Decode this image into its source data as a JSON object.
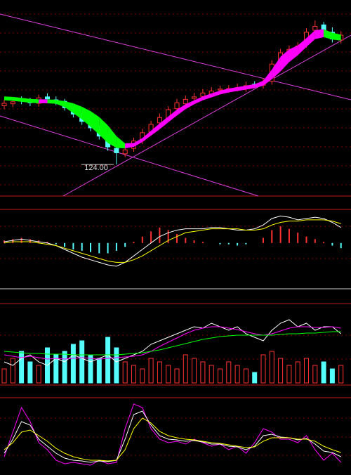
{
  "chart_data": [
    {
      "type": "candlestick",
      "ylim": [
        118,
        157
      ],
      "open": [
        136.0,
        136.4,
        137.2,
        136.9,
        136.5,
        137.8,
        137.2,
        136.9,
        135.4,
        134.0,
        132.6,
        131.2,
        129.5,
        127.3,
        126.2,
        127.3,
        128.9,
        130.6,
        132.5,
        133.4,
        135.4,
        136.4,
        137.5,
        137.9,
        138.4,
        139.2,
        139.3,
        139.6,
        139.5,
        140.4,
        140.2,
        141.0,
        144.9,
        147.0,
        147.3,
        148.5,
        151.4,
        152.5,
        151.0,
        149.4
      ],
      "high": [
        137.2,
        137.4,
        137.9,
        137.6,
        138.3,
        138.5,
        137.9,
        137.4,
        136.0,
        134.6,
        133.2,
        131.9,
        130.2,
        128.1,
        127.8,
        129.5,
        131.3,
        132.9,
        134.4,
        135.9,
        137.4,
        138.1,
        138.6,
        139.4,
        139.8,
        140.1,
        140.2,
        140.5,
        140.9,
        141.0,
        141.6,
        145.3,
        147.6,
        148.3,
        149.0,
        151.8,
        153.4,
        153.1,
        152.0,
        151.2
      ],
      "low": [
        135.3,
        135.7,
        136.3,
        135.9,
        135.8,
        136.7,
        136.1,
        135.0,
        133.6,
        132.1,
        130.8,
        129.1,
        126.8,
        124.0,
        125.5,
        126.6,
        128.2,
        129.9,
        131.8,
        132.7,
        134.7,
        135.7,
        136.8,
        137.2,
        137.7,
        138.5,
        138.6,
        138.9,
        138.8,
        139.6,
        139.5,
        140.3,
        144.1,
        146.3,
        146.6,
        147.8,
        150.7,
        150.6,
        148.9,
        148.7
      ],
      "close": [
        136.5,
        136.8,
        137.0,
        136.6,
        137.6,
        137.4,
        136.8,
        135.6,
        134.3,
        132.8,
        131.5,
        129.8,
        127.6,
        126.4,
        127.0,
        128.8,
        130.5,
        132.2,
        133.6,
        135.2,
        136.6,
        137.3,
        137.8,
        138.6,
        139.0,
        139.4,
        139.5,
        139.7,
        140.1,
        140.3,
        140.8,
        144.5,
        146.8,
        147.5,
        148.2,
        151.0,
        152.2,
        151.3,
        149.6,
        150.4
      ],
      "up_color": "#ff3232",
      "down_color": "#54fcfc",
      "band": {
        "up_color": "#ff00ff",
        "down_color": "#00ff00",
        "upper": [
          137.9,
          137.8,
          137.6,
          137.4,
          137.3,
          137.3,
          137.2,
          136.9,
          136.5,
          135.8,
          134.9,
          133.7,
          132.0,
          129.8,
          128.3,
          128.4,
          129.4,
          130.9,
          132.4,
          133.8,
          135.2,
          136.3,
          137.1,
          137.9,
          138.5,
          139.1,
          139.5,
          139.8,
          140.1,
          140.4,
          141.1,
          143.4,
          146.0,
          147.5,
          148.3,
          149.8,
          151.4,
          151.6,
          150.9,
          150.5
        ],
        "lower": [
          137.1,
          137.0,
          136.8,
          136.6,
          136.5,
          136.5,
          136.4,
          135.7,
          134.5,
          133.2,
          131.7,
          130.1,
          128.4,
          127.4,
          127.3,
          127.6,
          128.6,
          129.9,
          131.2,
          132.6,
          134.0,
          135.3,
          136.3,
          137.1,
          137.7,
          138.3,
          138.7,
          139.0,
          139.3,
          139.6,
          140.1,
          141.4,
          143.0,
          144.9,
          146.3,
          148.0,
          149.6,
          150.0,
          149.5,
          149.3
        ]
      },
      "annotation": {
        "text": "124.00",
        "value": 124.0
      }
    },
    {
      "type": "macd",
      "ylim": [
        -3.5,
        2.5
      ],
      "pos_color": "#ff3232",
      "neg_color": "#54fcfc",
      "histogram": [
        0.2,
        0.3,
        0.4,
        0.3,
        0.2,
        0.1,
        -0.1,
        -0.3,
        -0.5,
        -0.6,
        -0.7,
        -0.8,
        -0.8,
        -0.6,
        -0.3,
        0.1,
        0.5,
        0.9,
        1.2,
        1.0,
        0.7,
        0.4,
        0.2,
        0.1,
        0.0,
        -0.1,
        -0.1,
        -0.2,
        -0.1,
        0.0,
        0.4,
        1.0,
        1.3,
        1.1,
        0.8,
        0.5,
        0.3,
        0.1,
        -0.2,
        -0.4
      ],
      "series": [
        {
          "color": "#ffffff",
          "values": [
            0.1,
            0.2,
            0.3,
            0.2,
            0.1,
            0.0,
            -0.2,
            -0.5,
            -0.8,
            -1.1,
            -1.3,
            -1.5,
            -1.7,
            -1.8,
            -1.5,
            -1.0,
            -0.5,
            0.0,
            0.5,
            0.8,
            1.0,
            1.1,
            1.1,
            1.1,
            1.2,
            1.2,
            1.1,
            1.0,
            1.0,
            1.1,
            1.4,
            1.9,
            2.1,
            2.0,
            1.8,
            1.9,
            2.0,
            1.9,
            1.6,
            1.2
          ]
        },
        {
          "color": "#ffff00",
          "values": [
            0.0,
            0.1,
            0.1,
            0.1,
            0.0,
            -0.1,
            -0.2,
            -0.4,
            -0.6,
            -0.8,
            -1.0,
            -1.2,
            -1.4,
            -1.5,
            -1.5,
            -1.3,
            -1.0,
            -0.6,
            -0.2,
            0.2,
            0.5,
            0.8,
            0.9,
            1.0,
            1.1,
            1.1,
            1.1,
            1.1,
            1.0,
            1.0,
            1.1,
            1.4,
            1.6,
            1.7,
            1.7,
            1.8,
            1.8,
            1.8,
            1.7,
            1.5
          ]
        }
      ]
    },
    {
      "type": "volume",
      "ylim": [
        0,
        100
      ],
      "values": [
        20,
        35,
        45,
        30,
        25,
        50,
        40,
        45,
        55,
        60,
        40,
        35,
        65,
        50,
        30,
        25,
        20,
        35,
        30,
        25,
        20,
        40,
        35,
        30,
        25,
        20,
        30,
        25,
        20,
        15,
        40,
        45,
        35,
        25,
        30,
        35,
        25,
        30,
        20,
        25
      ],
      "up_color": "#ff3232",
      "down_color": "#54fcfc",
      "series": [
        {
          "color": "#ffffff",
          "values": [
            30,
            25,
            35,
            40,
            30,
            25,
            35,
            30,
            40,
            35,
            30,
            35,
            40,
            30,
            35,
            40,
            45,
            55,
            60,
            65,
            70,
            75,
            80,
            78,
            85,
            80,
            75,
            80,
            70,
            65,
            60,
            75,
            85,
            90,
            80,
            85,
            75,
            80,
            80,
            70
          ]
        },
        {
          "color": "#ff00ff",
          "values": [
            40,
            38,
            36,
            38,
            36,
            34,
            35,
            34,
            35,
            36,
            35,
            34,
            35,
            36,
            37,
            38,
            40,
            45,
            52,
            58,
            64,
            70,
            75,
            78,
            80,
            80,
            78,
            76,
            73,
            70,
            68,
            70,
            74,
            78,
            80,
            80,
            79,
            79,
            80,
            78
          ]
        },
        {
          "color": "#00ff00",
          "values": [
            45,
            44,
            43,
            42,
            42,
            41,
            41,
            41,
            40,
            40,
            40,
            40,
            40,
            40,
            41,
            42,
            43,
            45,
            47,
            50,
            53,
            56,
            59,
            62,
            64,
            66,
            67,
            68,
            68,
            68,
            68,
            68,
            69,
            70,
            70,
            71,
            71,
            72,
            73,
            73
          ]
        }
      ]
    },
    {
      "type": "oscillator",
      "ylim": [
        0,
        100
      ],
      "series": [
        {
          "color": "#ff00ff",
          "values": [
            20,
            55,
            90,
            70,
            40,
            30,
            15,
            10,
            12,
            10,
            8,
            15,
            10,
            12,
            60,
            95,
            90,
            60,
            45,
            40,
            42,
            38,
            45,
            40,
            35,
            38,
            30,
            35,
            25,
            40,
            60,
            55,
            45,
            45,
            40,
            50,
            30,
            15,
            25,
            12
          ]
        },
        {
          "color": "#ffffff",
          "values": [
            25,
            45,
            70,
            65,
            45,
            35,
            25,
            18,
            15,
            14,
            12,
            14,
            13,
            15,
            45,
            80,
            85,
            65,
            50,
            45,
            44,
            42,
            43,
            41,
            38,
            38,
            35,
            34,
            30,
            35,
            50,
            52,
            48,
            47,
            44,
            46,
            38,
            28,
            26,
            20
          ]
        },
        {
          "color": "#ffff00",
          "values": [
            30,
            40,
            55,
            58,
            50,
            42,
            32,
            25,
            20,
            17,
            15,
            15,
            14,
            15,
            30,
            60,
            75,
            68,
            56,
            50,
            47,
            45,
            44,
            42,
            40,
            39,
            37,
            35,
            33,
            34,
            42,
            47,
            47,
            47,
            45,
            45,
            42,
            35,
            30,
            26
          ]
        }
      ]
    }
  ]
}
